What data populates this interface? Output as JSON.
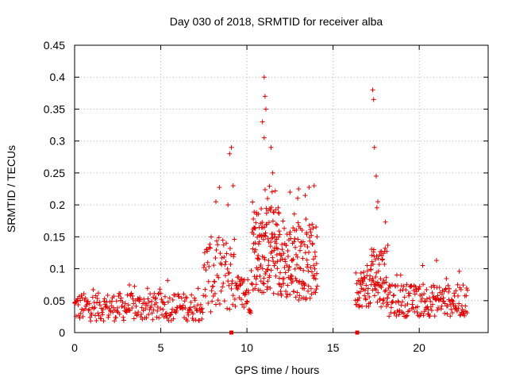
{
  "chart_data": {
    "type": "scatter",
    "title": "Day 030 of 2018, SRMTID for receiver alba",
    "xlabel": "GPS time / hours",
    "ylabel": "SRMTID / TECUs",
    "xlim": [
      0,
      24
    ],
    "ylim": [
      0,
      0.45
    ],
    "xticks": [
      0,
      5,
      10,
      15,
      20
    ],
    "xtick_labels": [
      "0",
      "5",
      "10",
      "15",
      "20"
    ],
    "yticks": [
      0,
      0.05,
      0.1,
      0.15,
      0.2,
      0.25,
      0.3,
      0.35,
      0.4,
      0.45
    ],
    "ytick_labels": [
      "0",
      "0.05",
      "0.1",
      "0.15",
      "0.2",
      "0.25",
      "0.3",
      "0.35",
      "0.4",
      "0.45"
    ],
    "grid": true,
    "marker": "plus",
    "color": "#e00000",
    "series": [
      {
        "name": "SRMTID",
        "segments": [
          {
            "from": 0.0,
            "to": 7.5,
            "base": 0.04,
            "spread": 0.022,
            "step": 0.03
          },
          {
            "from": 7.5,
            "to": 9.3,
            "base": 0.09,
            "spread": 0.06,
            "step": 0.025
          },
          {
            "from": 9.3,
            "to": 10.3,
            "base": 0.06,
            "spread": 0.03,
            "step": 0.025
          },
          {
            "from": 10.3,
            "to": 12.0,
            "base": 0.13,
            "spread": 0.07,
            "step": 0.012
          },
          {
            "from": 12.0,
            "to": 14.1,
            "base": 0.11,
            "spread": 0.06,
            "step": 0.015
          },
          {
            "from": 16.3,
            "to": 17.2,
            "base": 0.07,
            "spread": 0.03,
            "step": 0.02
          },
          {
            "from": 17.2,
            "to": 18.2,
            "base": 0.09,
            "spread": 0.05,
            "step": 0.015
          },
          {
            "from": 18.2,
            "to": 22.8,
            "base": 0.05,
            "spread": 0.025,
            "step": 0.025
          }
        ],
        "peaks": [
          {
            "x": 8.2,
            "y": 0.205
          },
          {
            "x": 8.9,
            "y": 0.2
          },
          {
            "x": 9.0,
            "y": 0.28
          },
          {
            "x": 9.1,
            "y": 0.29
          },
          {
            "x": 9.2,
            "y": 0.23
          },
          {
            "x": 10.9,
            "y": 0.33
          },
          {
            "x": 11.0,
            "y": 0.4
          },
          {
            "x": 11.05,
            "y": 0.37
          },
          {
            "x": 11.1,
            "y": 0.35
          },
          {
            "x": 11.0,
            "y": 0.305
          },
          {
            "x": 11.4,
            "y": 0.29
          },
          {
            "x": 11.5,
            "y": 0.25
          },
          {
            "x": 11.2,
            "y": 0.21
          },
          {
            "x": 12.5,
            "y": 0.22
          },
          {
            "x": 13.0,
            "y": 0.225
          },
          {
            "x": 13.9,
            "y": 0.23
          },
          {
            "x": 17.3,
            "y": 0.38
          },
          {
            "x": 17.35,
            "y": 0.365
          },
          {
            "x": 17.4,
            "y": 0.29
          },
          {
            "x": 17.5,
            "y": 0.245
          },
          {
            "x": 17.6,
            "y": 0.205
          },
          {
            "x": 21.0,
            "y": 0.113
          }
        ],
        "zero_marks": [
          9.1,
          16.4
        ]
      }
    ]
  }
}
